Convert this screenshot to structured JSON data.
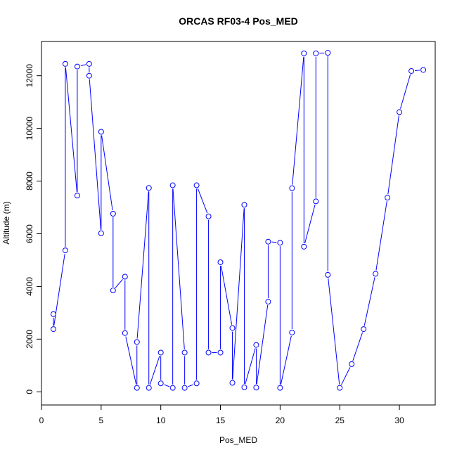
{
  "chart_data": {
    "type": "line",
    "title": "ORCAS RF03-4 Pos_MED",
    "xlabel": "Pos_MED",
    "ylabel": "Altitude (m)",
    "xlim": [
      0,
      33
    ],
    "ylim": [
      -500,
      13300
    ],
    "xticks": [
      0,
      5,
      10,
      15,
      20,
      25,
      30
    ],
    "yticks": [
      0,
      2000,
      4000,
      6000,
      8000,
      10000,
      12000
    ],
    "grid": false,
    "color": "#0000ff",
    "x": [
      1,
      1,
      2,
      2,
      3,
      3,
      4,
      4,
      5,
      5,
      6,
      6,
      7,
      7,
      8,
      8,
      9,
      9,
      10,
      10,
      11,
      11,
      12,
      12,
      13,
      13,
      14,
      14,
      15,
      15,
      16,
      16,
      17,
      17,
      18,
      18,
      19,
      19,
      20,
      20,
      21,
      21,
      22,
      22,
      23,
      23,
      24,
      24,
      25,
      26,
      27,
      28,
      29,
      30,
      31,
      32
    ],
    "y": [
      2950,
      2380,
      5370,
      12450,
      7450,
      12350,
      12450,
      12000,
      6020,
      9870,
      6760,
      3850,
      4370,
      2230,
      150,
      1890,
      7740,
      150,
      1490,
      320,
      150,
      7840,
      1490,
      150,
      320,
      7840,
      6660,
      1490,
      1490,
      4920,
      2420,
      340,
      7100,
      170,
      1780,
      160,
      3420,
      5700,
      5660,
      150,
      2250,
      7730,
      12850,
      5510,
      7230,
      12850,
      12870,
      4440,
      150,
      1050,
      2380,
      4480,
      7370,
      10620,
      12180,
      12220
    ]
  }
}
